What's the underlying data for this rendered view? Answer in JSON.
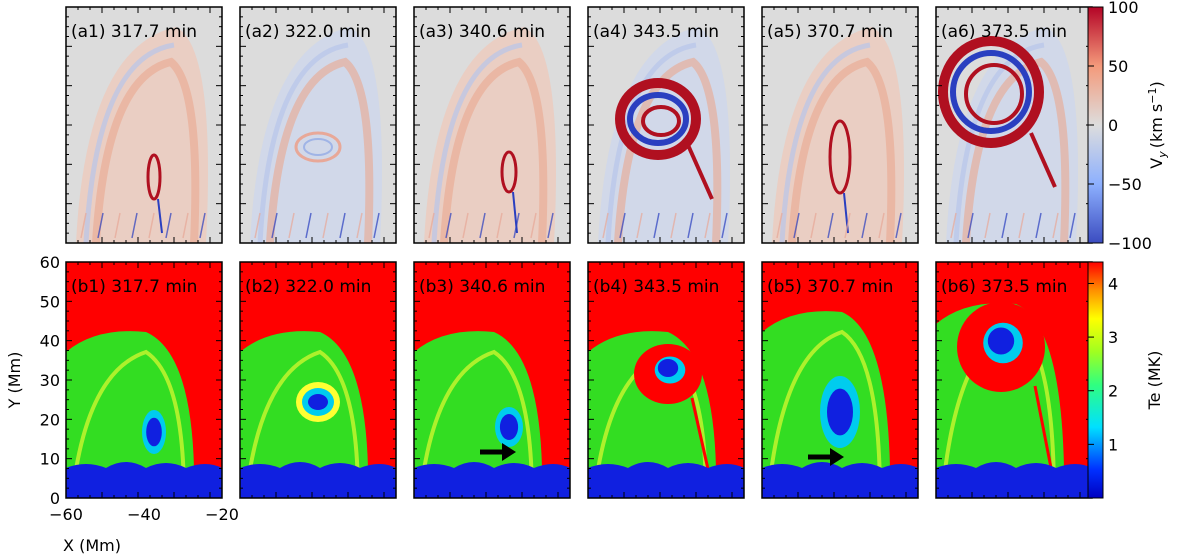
{
  "figure": {
    "top_row_label_prefix": "a",
    "bottom_row_label_prefix": "b",
    "times": [
      "317.7 min",
      "322.0 min",
      "340.6 min",
      "343.5 min",
      "370.7 min",
      "373.5 min"
    ],
    "top_labels": [
      "(a1)",
      "(a2)",
      "(a3)",
      "(a4)",
      "(a5)",
      "(a6)"
    ],
    "bottom_labels": [
      "(b1)",
      "(b2)",
      "(b3)",
      "(b4)",
      "(b5)",
      "(b6)"
    ],
    "arrows_in_panels": [
      "b3",
      "b5"
    ]
  },
  "axes": {
    "x_title": "X (Mm)",
    "y_title": "Y (Mm)",
    "x_ticks": [
      "−60",
      "−40",
      "−20"
    ],
    "x_range": [
      -60,
      -20
    ],
    "y_ticks": [
      "0",
      "10",
      "20",
      "30",
      "40",
      "50",
      "60"
    ],
    "y_range": [
      0,
      60
    ]
  },
  "colorbar_vy": {
    "title": "V_y (km s⁻¹)",
    "title_main": "V",
    "title_sub": "y",
    "title_units": "(km s",
    "title_exp": "−1",
    "title_close": ")",
    "ticks": [
      "100",
      "50",
      "0",
      "−50",
      "−100"
    ],
    "range": [
      -100,
      100
    ],
    "colormap": [
      "#3b4cc0",
      "#8db0fe",
      "#dddddd",
      "#f49a7b",
      "#b40426"
    ]
  },
  "colorbar_te": {
    "title": "Te (MK)",
    "ticks": [
      "4",
      "3",
      "2",
      "1"
    ],
    "range": [
      0,
      4.4
    ],
    "colormap": [
      "#0000ff",
      "#00ffff",
      "#00ff00",
      "#ffff00",
      "#ff0000"
    ]
  },
  "colors": {
    "vy_background": "#dcdcdc",
    "vy_red": "#b01020",
    "vy_blue": "#2a3fc0",
    "te_hot": "#ff0000",
    "te_warm": "#33dd22",
    "te_cold": "#1020e0",
    "te_cyan": "#00ccee",
    "te_yellow": "#ffff33"
  }
}
